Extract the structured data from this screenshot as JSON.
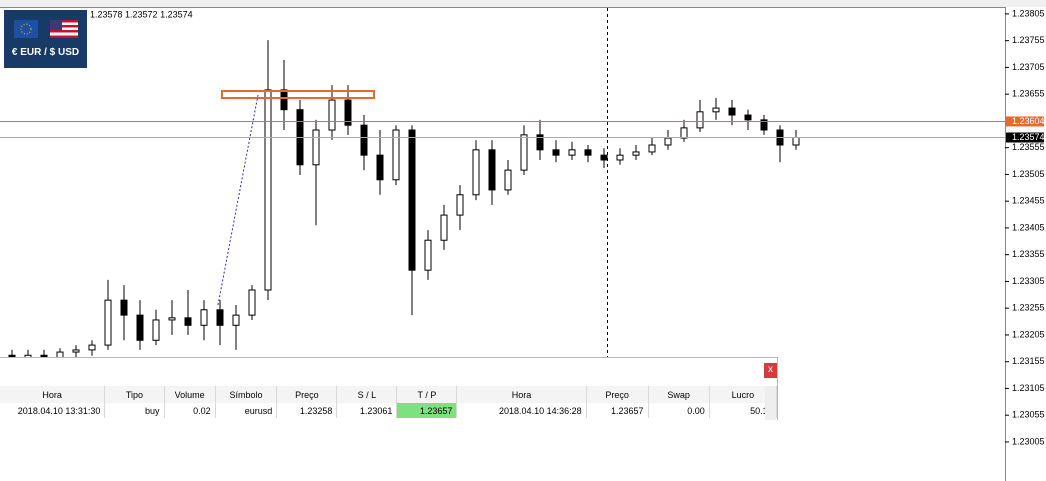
{
  "chart_data": {
    "type": "candlestick",
    "symbol_label": "€ EUR / $ USD",
    "ohlc_text": "1.23578 1.23572 1.23574",
    "color": "#000000",
    "open": [
      1.23167,
      1.23158,
      1.23167,
      1.23162,
      1.23173,
      1.23177,
      1.23186,
      1.2327,
      1.23242,
      1.23195,
      1.23233,
      1.23237,
      1.23223,
      1.23252,
      1.23223,
      1.23242,
      1.23289,
      1.23663,
      1.23626,
      1.23523,
      1.23588,
      1.23644,
      1.23597,
      1.23541,
      1.23495,
      1.23588,
      1.23326,
      1.23382,
      1.23429,
      1.23467,
      1.23551,
      1.23476,
      1.23513,
      1.23579,
      1.23551,
      1.23541,
      1.23551,
      1.23541,
      1.23532,
      1.23541,
      1.23547,
      1.2356,
      1.23573,
      1.23592,
      1.23622,
      1.23629,
      1.23616,
      1.23607,
      1.23588,
      1.2356
    ],
    "high": [
      1.23177,
      1.23177,
      1.23177,
      1.2318,
      1.23186,
      1.23195,
      1.23308,
      1.23298,
      1.2327,
      1.23252,
      1.2327,
      1.23289,
      1.2327,
      1.2327,
      1.23261,
      1.23298,
      1.23756,
      1.23719,
      1.23644,
      1.23607,
      1.23672,
      1.23672,
      1.23616,
      1.23588,
      1.23597,
      1.23597,
      1.23401,
      1.23448,
      1.23485,
      1.23569,
      1.23569,
      1.23532,
      1.23597,
      1.23607,
      1.23569,
      1.23566,
      1.2356,
      1.23554,
      1.23554,
      1.2356,
      1.23573,
      1.23588,
      1.23607,
      1.23644,
      1.23648,
      1.23644,
      1.23626,
      1.23616,
      1.23597,
      1.23588
    ],
    "low": [
      1.23149,
      1.23154,
      1.23149,
      1.23154,
      1.23162,
      1.23166,
      1.23177,
      1.23195,
      1.23177,
      1.23186,
      1.23205,
      1.23205,
      1.23195,
      1.23186,
      1.23177,
      1.23233,
      1.2327,
      1.23588,
      1.23504,
      1.2341,
      1.23569,
      1.23579,
      1.23513,
      1.23467,
      1.23485,
      1.23242,
      1.23308,
      1.23364,
      1.23401,
      1.23457,
      1.23448,
      1.23467,
      1.23504,
      1.23532,
      1.23528,
      1.23532,
      1.23528,
      1.23517,
      1.23523,
      1.23532,
      1.23541,
      1.23551,
      1.23566,
      1.23584,
      1.23607,
      1.23597,
      1.23588,
      1.23579,
      1.23528,
      1.23551
    ],
    "close": [
      1.23158,
      1.23167,
      1.23162,
      1.23173,
      1.23177,
      1.23186,
      1.2327,
      1.23242,
      1.23195,
      1.23233,
      1.23237,
      1.23223,
      1.23252,
      1.23223,
      1.23242,
      1.23289,
      1.23663,
      1.23626,
      1.23523,
      1.23588,
      1.23644,
      1.23597,
      1.23541,
      1.23495,
      1.23588,
      1.23326,
      1.23382,
      1.23429,
      1.23467,
      1.23551,
      1.23476,
      1.23513,
      1.23579,
      1.23551,
      1.23541,
      1.23551,
      1.23541,
      1.23532,
      1.23541,
      1.23547,
      1.2356,
      1.23573,
      1.23592,
      1.23622,
      1.23629,
      1.23616,
      1.23607,
      1.23588,
      1.2356,
      1.23574
    ],
    "ylim": [
      1.22932,
      1.23831
    ],
    "yticks": [
      1.23805,
      1.23755,
      1.23705,
      1.23655,
      1.23555,
      1.23505,
      1.23455,
      1.23405,
      1.23355,
      1.23305,
      1.23255,
      1.23205,
      1.23155,
      1.23105,
      1.23055,
      1.23005
    ],
    "price_lines": [
      {
        "value": 1.23604,
        "color": "#e8692e"
      },
      {
        "value": 1.23574,
        "color": "#000000"
      }
    ]
  },
  "trade_panel": {
    "close_button": "x",
    "columns": [
      "Hora",
      "Tipo",
      "Volume",
      "Símbolo",
      "Preço",
      "S / L",
      "T / P",
      "Hora",
      "Preço",
      "Swap",
      "Lucro"
    ],
    "rows": [
      [
        "2018.04.10 13:31:30",
        "buy",
        "0.02",
        "eurusd",
        "1.23258",
        "1.23061",
        "1.23657",
        "2018.04.10 14:36:28",
        "1.23657",
        "0.00",
        "50.11"
      ]
    ]
  }
}
